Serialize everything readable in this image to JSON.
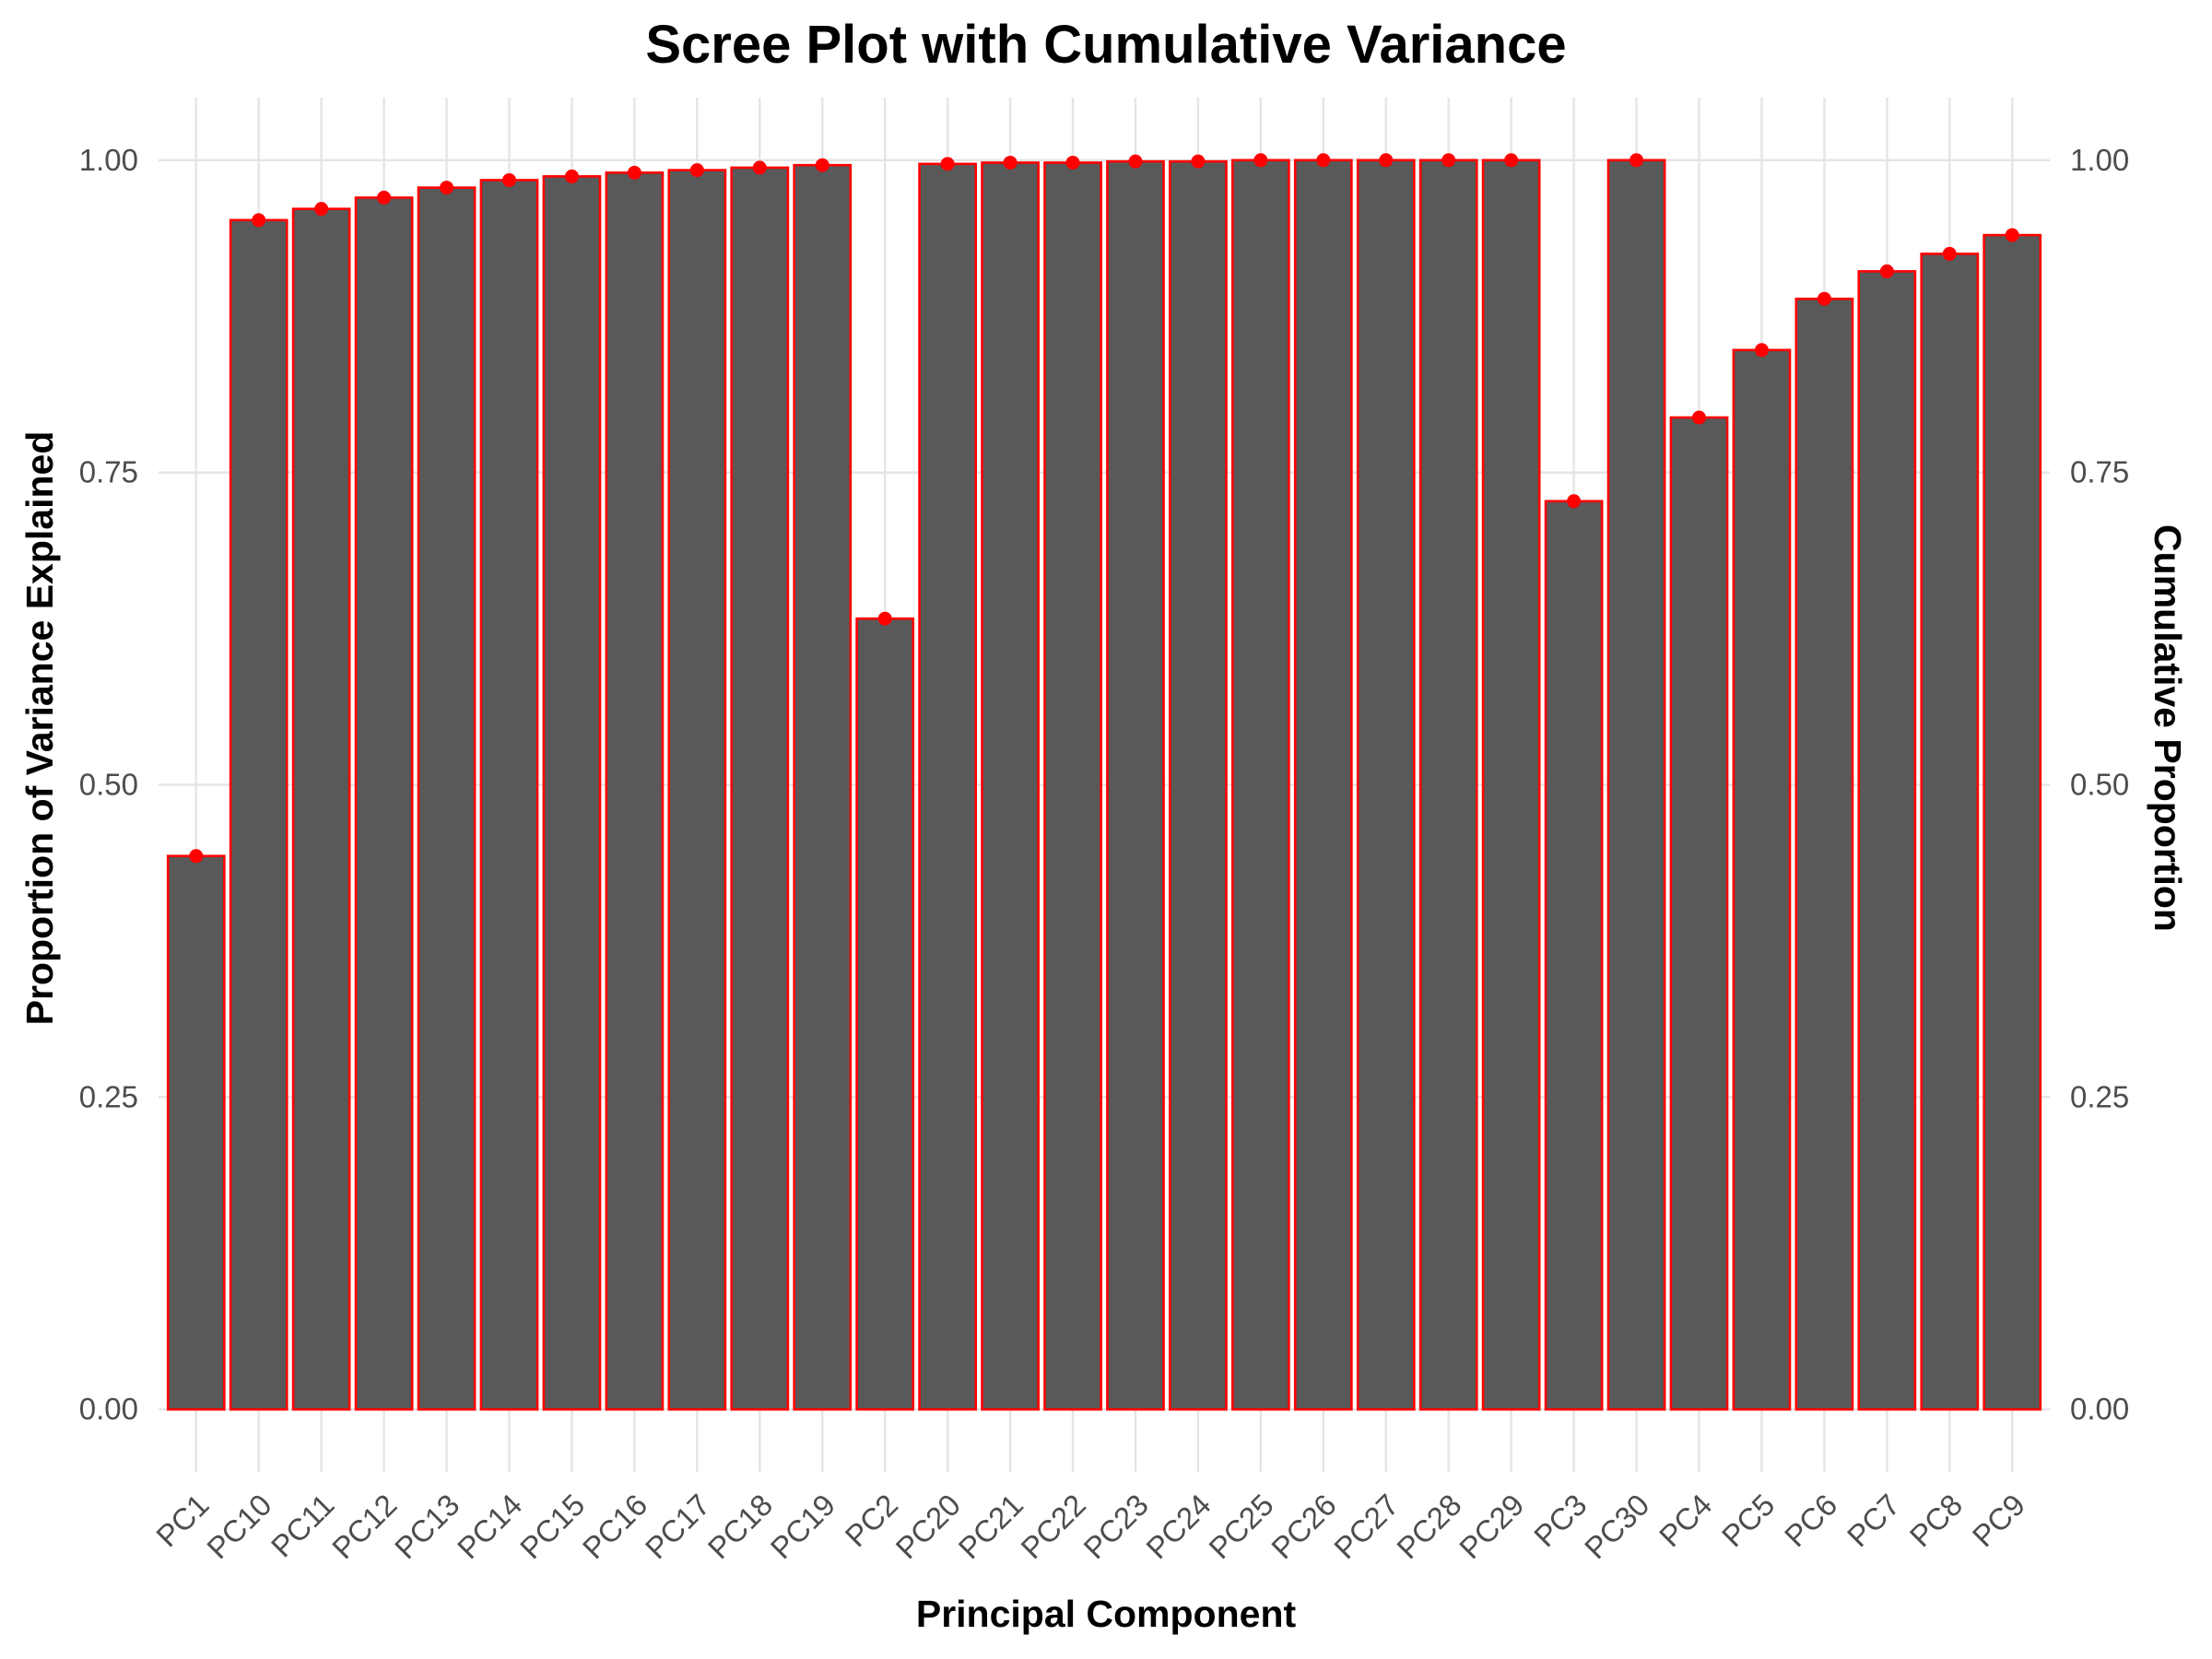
{
  "chart_data": {
    "type": "bar",
    "title": "Scree Plot with Cumulative Variance",
    "xlabel": "Principal Component",
    "ylabel": "Proportion of Variance Explained",
    "y2label": "Cumulative Proportion",
    "categories": [
      "PC1",
      "PC10",
      "PC11",
      "PC12",
      "PC13",
      "PC14",
      "PC15",
      "PC16",
      "PC17",
      "PC18",
      "PC19",
      "PC2",
      "PC20",
      "PC21",
      "PC22",
      "PC23",
      "PC24",
      "PC25",
      "PC26",
      "PC27",
      "PC28",
      "PC29",
      "PC3",
      "PC30",
      "PC4",
      "PC5",
      "PC6",
      "PC7",
      "PC8",
      "PC9"
    ],
    "series": [
      {
        "type": "bar",
        "values": [
          0.443,
          0.952,
          0.961,
          0.97,
          0.978,
          0.984,
          0.987,
          0.99,
          0.992,
          0.994,
          0.996,
          0.633,
          0.997,
          0.998,
          0.998,
          0.999,
          0.999,
          1.0,
          1.0,
          1.0,
          1.0,
          1.0,
          0.727,
          1.0,
          0.794,
          0.848,
          0.889,
          0.911,
          0.925,
          0.94
        ]
      },
      {
        "type": "points",
        "values": [
          0.443,
          0.952,
          0.961,
          0.97,
          0.978,
          0.984,
          0.987,
          0.99,
          0.992,
          0.994,
          0.996,
          0.633,
          0.997,
          0.998,
          0.998,
          0.999,
          0.999,
          1.0,
          1.0,
          1.0,
          1.0,
          1.0,
          0.727,
          1.0,
          0.794,
          0.848,
          0.889,
          0.911,
          0.925,
          0.94
        ]
      }
    ],
    "ylim": [
      -0.05,
      1.05
    ],
    "yticks": [
      "0.00",
      "0.25",
      "0.50",
      "0.75",
      "1.00"
    ],
    "y2ticks": [
      "0.00",
      "0.25",
      "0.50",
      "0.75",
      "1.00"
    ],
    "grid": true,
    "colors": {
      "bar_fill": "#595959",
      "bar_outline": "#ff0000",
      "points": "#ff0000",
      "grid": "#e5e5e5",
      "tick_text": "#4d4d4d"
    }
  }
}
